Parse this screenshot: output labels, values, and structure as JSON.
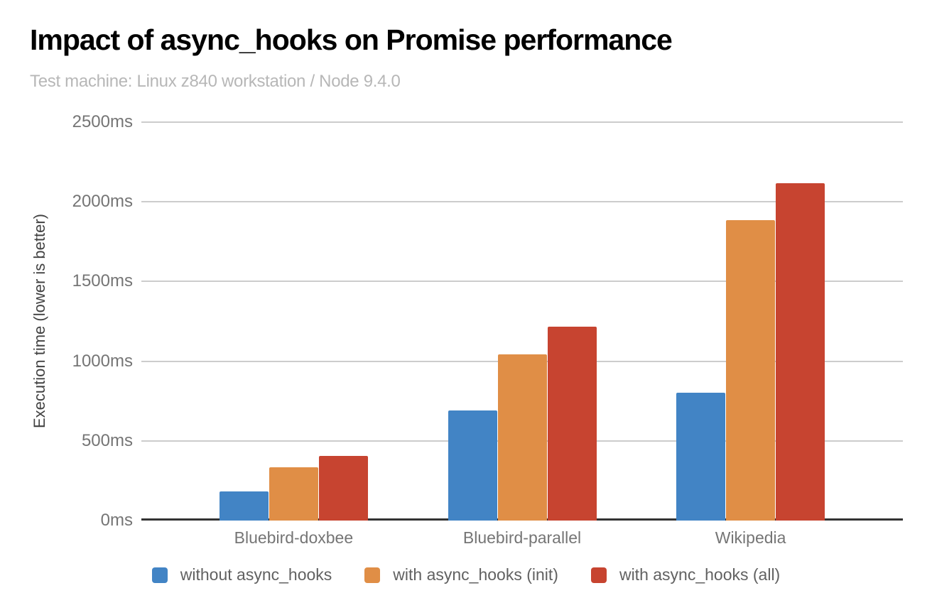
{
  "chart": {
    "title": "Impact of async_hooks on Promise performance",
    "subtitle": "Test machine: Linux z840 workstation / Node 9.4.0",
    "y_axis_title": "Execution time (lower is better)"
  },
  "chart_data": {
    "type": "bar",
    "title": "Impact of async_hooks on Promise performance",
    "subtitle": "Test machine: Linux z840 workstation / Node 9.4.0",
    "categories": [
      "Bluebird-doxbee",
      "Bluebird-parallel",
      "Wikipedia"
    ],
    "series": [
      {
        "name": "without async_hooks",
        "color": "#4284c5",
        "values": [
          185,
          690,
          800
        ]
      },
      {
        "name": "with async_hooks (init)",
        "color": "#e08e46",
        "values": [
          335,
          1045,
          1885
        ]
      },
      {
        "name": "with async_hooks (all)",
        "color": "#c74430",
        "values": [
          405,
          1215,
          2115
        ]
      }
    ],
    "xlabel": "",
    "ylabel": "Execution time (lower is better)",
    "ylim": [
      0,
      2500
    ],
    "yticks": [
      0,
      500,
      1000,
      1500,
      2000,
      2500
    ],
    "ytick_suffix": "ms",
    "grid": true,
    "legend_position": "bottom"
  },
  "colors": {
    "background": "#ffffff",
    "title_text": "#000000",
    "subtitle_text": "#b7b7b7",
    "axis_title_text": "#424242",
    "tick_text": "#757575",
    "legend_text": "#616161",
    "gridline": "#cccccc",
    "baseline": "#333333"
  }
}
